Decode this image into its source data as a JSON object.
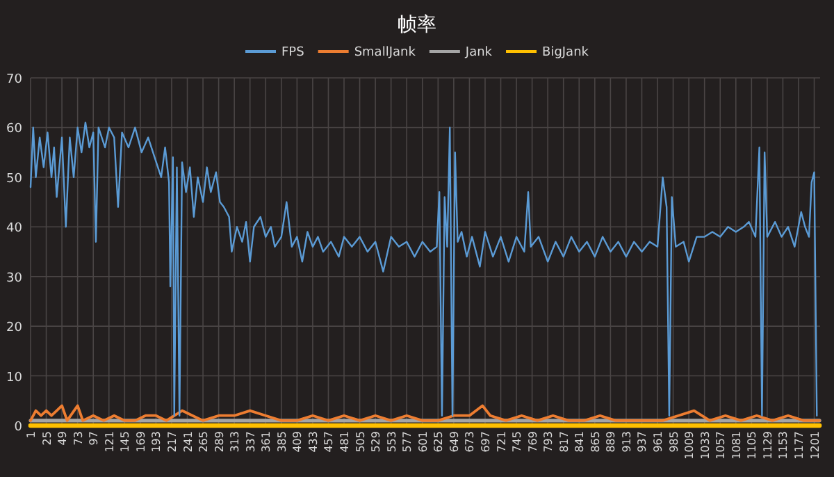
{
  "chart_data": {
    "type": "line",
    "title": "帧率",
    "legend": "top",
    "grid": true,
    "xlim": [
      1,
      1210
    ],
    "ylim": [
      0,
      70
    ],
    "yticks": [
      0,
      10,
      20,
      30,
      40,
      50,
      60,
      70
    ],
    "xticks": [
      1,
      25,
      49,
      73,
      97,
      121,
      145,
      169,
      193,
      217,
      241,
      265,
      289,
      313,
      337,
      361,
      385,
      409,
      433,
      457,
      481,
      505,
      529,
      553,
      577,
      601,
      625,
      649,
      673,
      697,
      721,
      745,
      769,
      793,
      817,
      841,
      865,
      889,
      913,
      937,
      961,
      985,
      1009,
      1033,
      1057,
      1081,
      1105,
      1129,
      1153,
      1177,
      1201
    ],
    "series": [
      {
        "name": "FPS",
        "color": "#5b9bd5",
        "x": [
          1,
          5,
          9,
          15,
          21,
          27,
          33,
          37,
          41,
          49,
          55,
          61,
          67,
          73,
          79,
          85,
          91,
          97,
          101,
          105,
          115,
          121,
          129,
          135,
          141,
          151,
          161,
          171,
          181,
          191,
          201,
          207,
          213,
          215,
          219,
          221,
          225,
          229,
          233,
          239,
          245,
          251,
          257,
          265,
          271,
          277,
          285,
          291,
          297,
          305,
          309,
          317,
          325,
          331,
          337,
          343,
          353,
          361,
          369,
          375,
          385,
          393,
          401,
          409,
          417,
          425,
          433,
          441,
          449,
          461,
          473,
          481,
          493,
          505,
          517,
          529,
          541,
          553,
          565,
          577,
          589,
          601,
          613,
          623,
          627,
          631,
          635,
          639,
          643,
          647,
          651,
          655,
          661,
          669,
          677,
          689,
          697,
          709,
          721,
          733,
          745,
          757,
          763,
          767,
          779,
          793,
          805,
          817,
          829,
          841,
          853,
          865,
          877,
          889,
          901,
          913,
          925,
          937,
          949,
          961,
          969,
          975,
          979,
          983,
          989,
          1001,
          1009,
          1021,
          1033,
          1045,
          1057,
          1069,
          1081,
          1093,
          1101,
          1111,
          1117,
          1121,
          1125,
          1129,
          1141,
          1151,
          1161,
          1171,
          1181,
          1187,
          1193,
          1197,
          1201,
          1205
        ],
        "values": [
          48,
          60,
          50,
          58,
          52,
          59,
          50,
          56,
          46,
          58,
          40,
          58,
          50,
          60,
          55,
          61,
          56,
          59,
          37,
          60,
          56,
          60,
          58,
          44,
          59,
          56,
          60,
          55,
          58,
          54,
          50,
          56,
          49,
          28,
          54,
          2,
          52,
          2,
          53,
          47,
          52,
          42,
          50,
          45,
          52,
          47,
          51,
          45,
          44,
          42,
          35,
          40,
          37,
          41,
          33,
          40,
          42,
          38,
          40,
          36,
          38,
          45,
          36,
          38,
          33,
          39,
          36,
          38,
          35,
          37,
          34,
          38,
          36,
          38,
          35,
          37,
          31,
          38,
          36,
          37,
          34,
          37,
          35,
          36,
          47,
          2,
          46,
          36,
          60,
          2,
          55,
          37,
          39,
          34,
          38,
          32,
          39,
          34,
          38,
          33,
          38,
          35,
          47,
          36,
          38,
          33,
          37,
          34,
          38,
          35,
          37,
          34,
          38,
          35,
          37,
          34,
          37,
          35,
          37,
          36,
          50,
          44,
          2,
          46,
          36,
          37,
          33,
          38,
          38,
          39,
          38,
          40,
          39,
          40,
          41,
          38,
          56,
          2,
          55,
          38,
          41,
          38,
          40,
          36,
          43,
          40,
          38,
          49,
          51,
          2
        ]
      },
      {
        "name": "SmallJank",
        "color": "#ed7d31",
        "x": [
          1,
          9,
          17,
          25,
          33,
          41,
          49,
          57,
          73,
          81,
          97,
          113,
          129,
          145,
          161,
          177,
          193,
          209,
          233,
          249,
          265,
          289,
          313,
          337,
          361,
          385,
          409,
          433,
          457,
          481,
          505,
          529,
          553,
          577,
          601,
          625,
          649,
          673,
          693,
          705,
          729,
          753,
          777,
          801,
          825,
          849,
          873,
          897,
          921,
          945,
          969,
          993,
          1017,
          1041,
          1065,
          1089,
          1113,
          1137,
          1161,
          1185,
          1209
        ],
        "values": [
          1,
          3,
          2,
          3,
          2,
          3,
          4,
          1,
          4,
          1,
          2,
          1,
          2,
          1,
          1,
          2,
          2,
          1,
          3,
          2,
          1,
          2,
          2,
          3,
          2,
          1,
          1,
          2,
          1,
          2,
          1,
          2,
          1,
          2,
          1,
          1,
          2,
          2,
          4,
          2,
          1,
          2,
          1,
          2,
          1,
          1,
          2,
          1,
          1,
          1,
          1,
          2,
          3,
          1,
          2,
          1,
          2,
          1,
          2,
          1,
          1
        ]
      },
      {
        "name": "Jank",
        "color": "#a5a5a5",
        "x": [
          1,
          97,
          193,
          289,
          385,
          481,
          577,
          673,
          769,
          865,
          961,
          1057,
          1153,
          1209
        ],
        "values": [
          1,
          1,
          1,
          1,
          1,
          1,
          1,
          1,
          1,
          1,
          1,
          1,
          1,
          1
        ]
      },
      {
        "name": "BigJank",
        "color": "#ffc000",
        "x": [
          1,
          97,
          193,
          289,
          385,
          481,
          577,
          673,
          769,
          865,
          961,
          1057,
          1153,
          1209
        ],
        "values": [
          0,
          0,
          0,
          0,
          0,
          0,
          0,
          0,
          0,
          0,
          0,
          0,
          0,
          0
        ]
      }
    ]
  }
}
